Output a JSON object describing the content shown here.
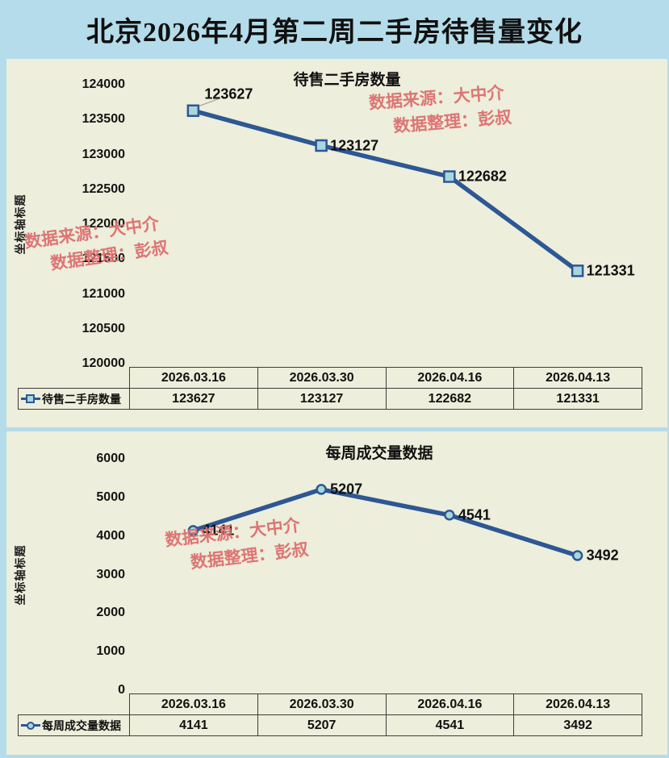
{
  "page": {
    "title": "北京2026年4月第二周二手房待售量变化"
  },
  "watermark": {
    "line1": "数据来源：大中介",
    "line2": "数据整理：彭叔"
  },
  "colors": {
    "page_bg": "#b5dcea",
    "panel_bg": "#edeedb",
    "line": "#2d5795",
    "marker_fill": "#a9d6db",
    "watermark": "#dd6f6f",
    "table_border": "#3d3d3d",
    "leader_line": "#a0a09a"
  },
  "chart_data": [
    {
      "type": "line",
      "title": "待售二手房数量",
      "categories": [
        "2026.03.16",
        "2026.03.30",
        "2026.04.16",
        "2026.04.13"
      ],
      "series": [
        {
          "name": "待售二手房数量",
          "values": [
            123627,
            123127,
            122682,
            121331
          ]
        }
      ],
      "xlabel": "",
      "ylabel": "坐标轴标题",
      "ylim": [
        120000,
        124000
      ],
      "ytick_step": 500,
      "grid": false,
      "marker": "square",
      "legend_position": "data-table-left",
      "data_labels": true
    },
    {
      "type": "line",
      "title": "每周成交量数据",
      "categories": [
        "2026.03.16",
        "2026.03.30",
        "2026.04.16",
        "2026.04.13"
      ],
      "series": [
        {
          "name": "每周成交量数据",
          "values": [
            4141,
            5207,
            4541,
            3492
          ]
        }
      ],
      "xlabel": "",
      "ylabel": "坐标轴标题",
      "ylim": [
        0,
        6000
      ],
      "ytick_step": 1000,
      "grid": false,
      "marker": "circle",
      "legend_position": "data-table-left",
      "data_labels": true
    }
  ]
}
